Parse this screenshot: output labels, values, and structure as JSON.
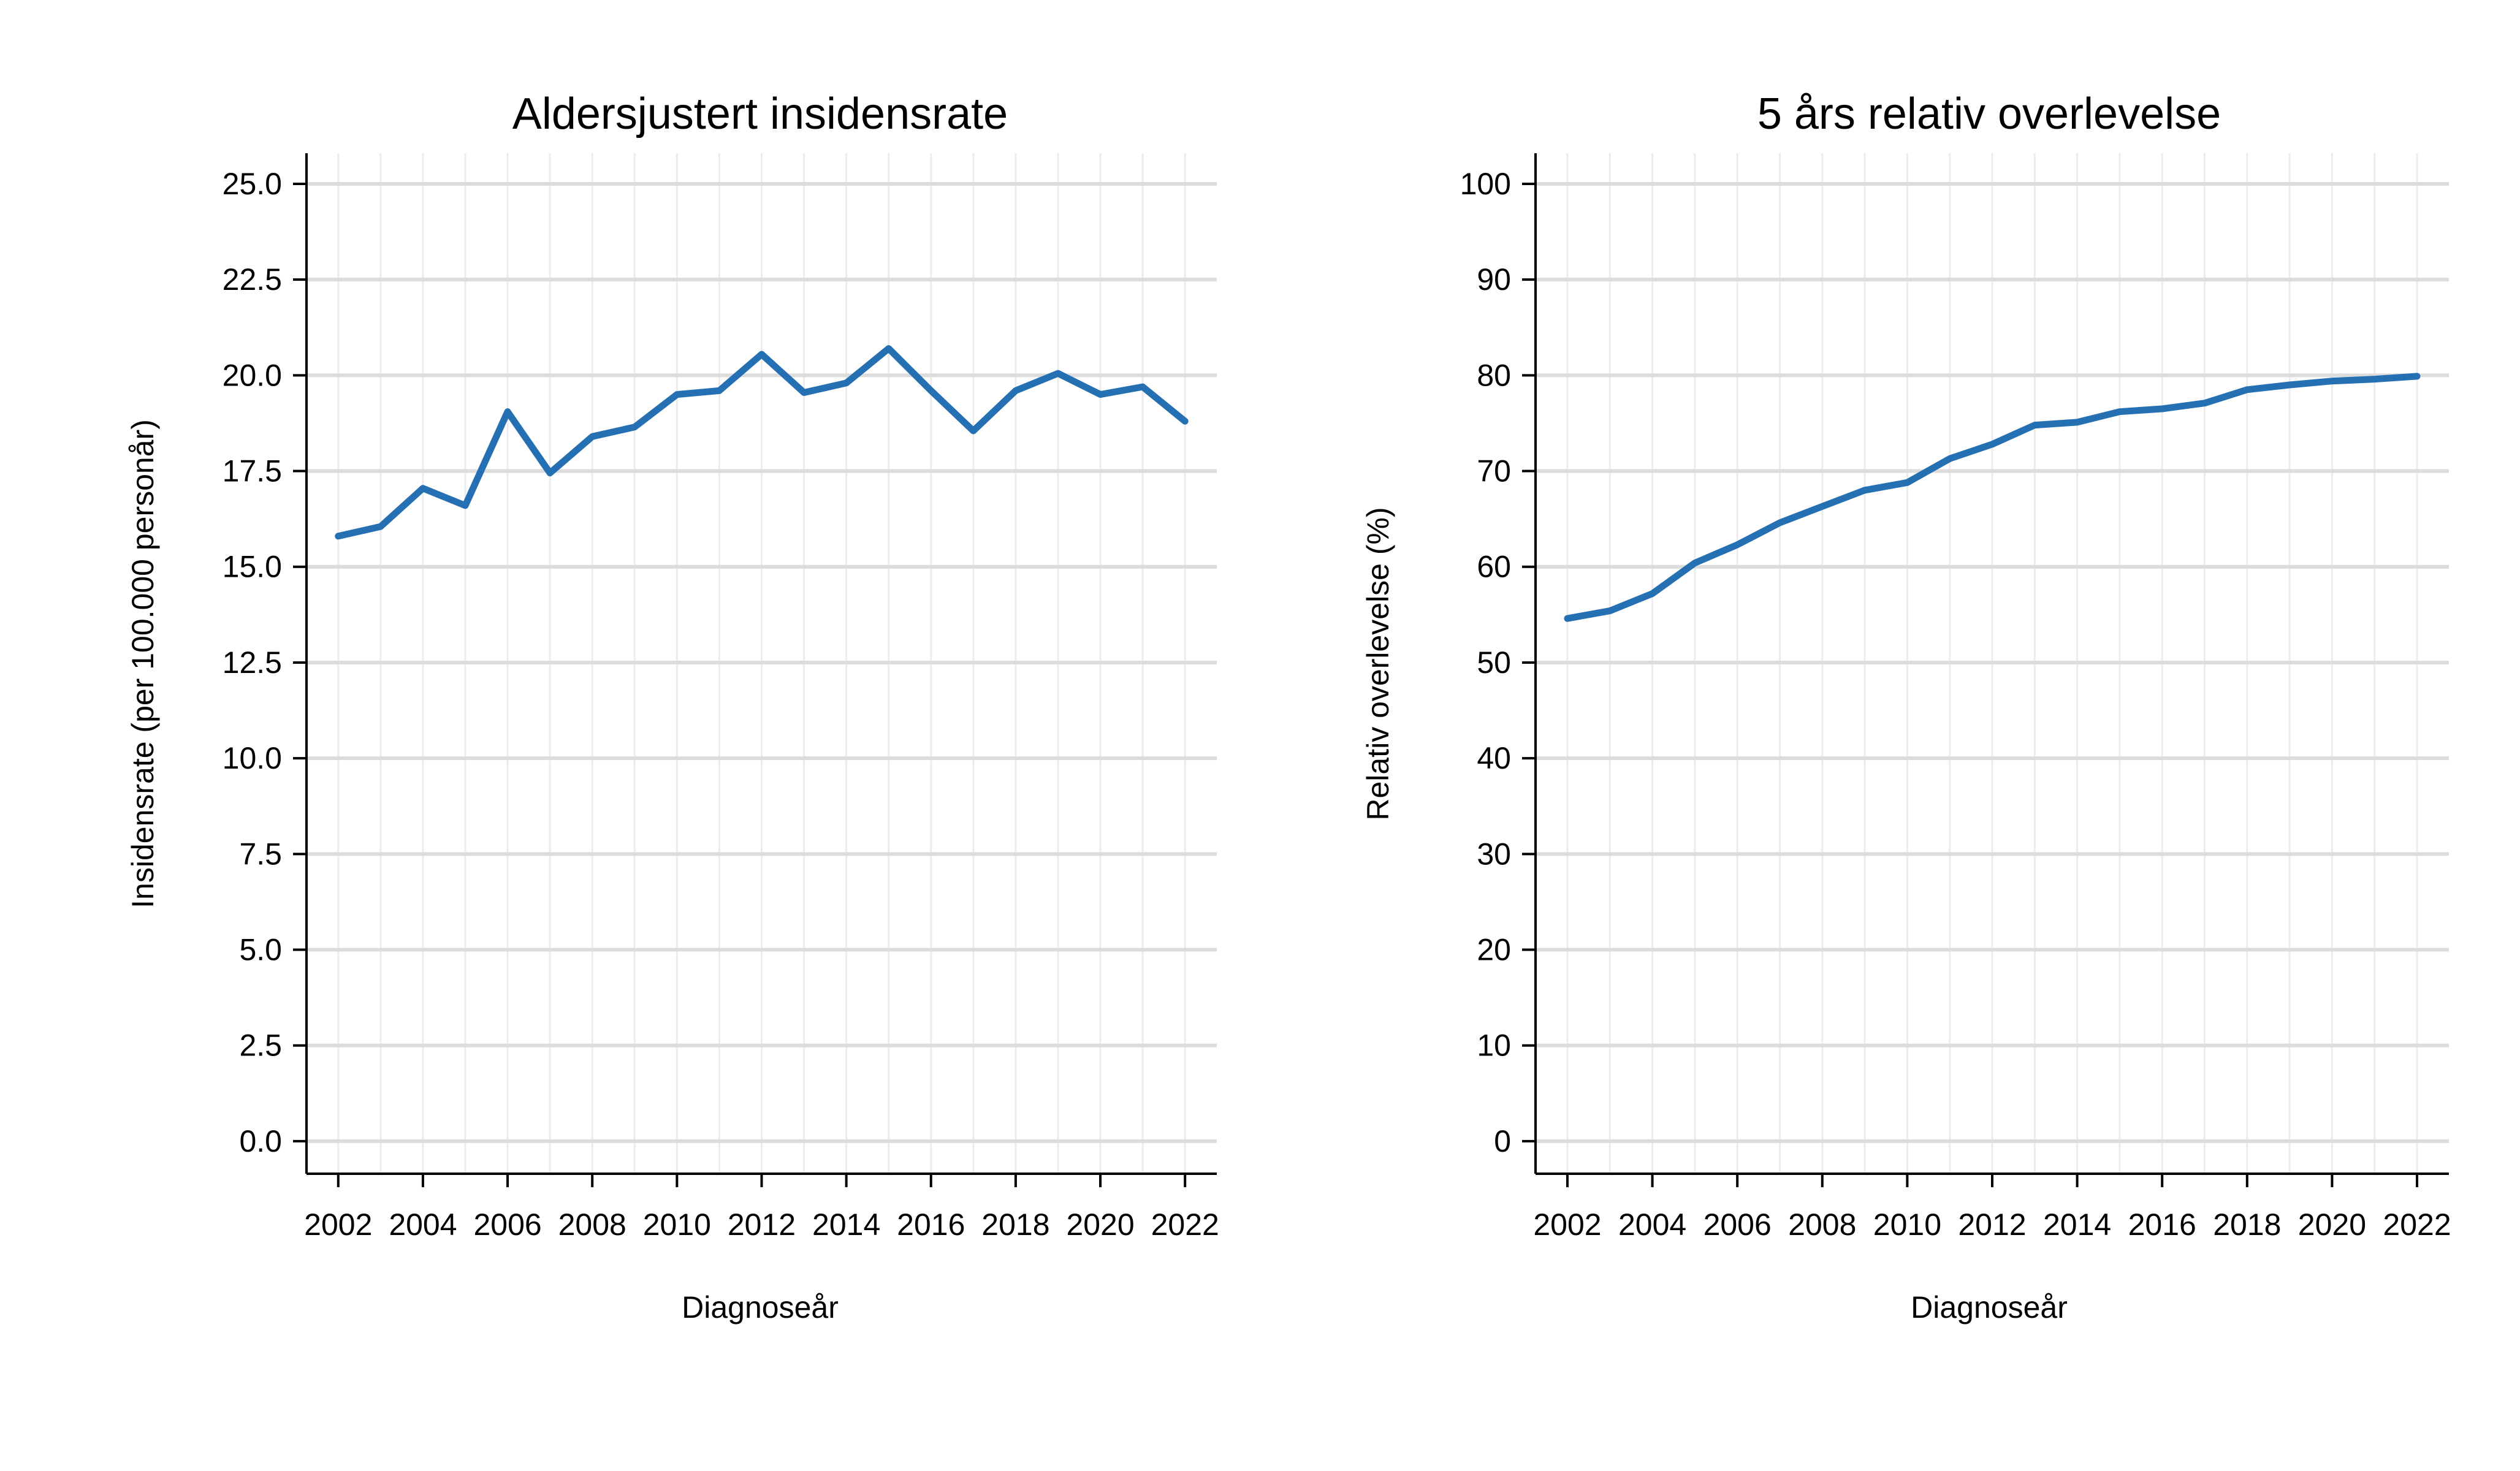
{
  "colors": {
    "series": "#2470b3"
  },
  "chart_data": [
    {
      "type": "line",
      "title": "Aldersjustert insidensrate",
      "xlabel": "Diagnoseår",
      "ylabel": "Insidensrate (per 100.000 personår)",
      "x": [
        2002,
        2003,
        2004,
        2005,
        2006,
        2007,
        2008,
        2009,
        2010,
        2011,
        2012,
        2013,
        2014,
        2015,
        2016,
        2017,
        2018,
        2019,
        2020,
        2021,
        2022
      ],
      "series": [
        {
          "values": [
            15.8,
            16.05,
            17.05,
            16.6,
            19.05,
            17.45,
            18.4,
            18.65,
            19.5,
            19.6,
            20.55,
            19.55,
            19.8,
            20.7,
            19.6,
            18.55,
            19.6,
            20.05,
            19.5,
            19.7,
            18.8
          ]
        }
      ],
      "xticks": [
        "2002",
        "2004",
        "2006",
        "2008",
        "2010",
        "2012",
        "2014",
        "2016",
        "2018",
        "2020",
        "2022"
      ],
      "yticks": [
        "0.0",
        "2.5",
        "5.0",
        "7.5",
        "10.0",
        "12.5",
        "15.0",
        "17.5",
        "20.0",
        "22.5",
        "25.0"
      ],
      "xlim": [
        2001.25,
        2022.75
      ],
      "ylim": [
        -0.85,
        25.8
      ],
      "grid": true
    },
    {
      "type": "line",
      "title": "5 års relativ overlevelse",
      "xlabel": "Diagnoseår",
      "ylabel": "Relativ overlevelse (%)",
      "x": [
        2002,
        2003,
        2004,
        2005,
        2006,
        2007,
        2008,
        2009,
        2010,
        2011,
        2012,
        2013,
        2014,
        2015,
        2016,
        2017,
        2018,
        2019,
        2020,
        2021,
        2022
      ],
      "series": [
        {
          "values": [
            54.6,
            55.4,
            57.2,
            60.4,
            62.3,
            64.6,
            66.3,
            68.0,
            68.8,
            71.3,
            72.8,
            74.8,
            75.1,
            76.2,
            76.5,
            77.1,
            78.5,
            79.0,
            79.4,
            79.6,
            79.9
          ]
        }
      ],
      "xticks": [
        "2002",
        "2004",
        "2006",
        "2008",
        "2010",
        "2012",
        "2014",
        "2016",
        "2018",
        "2020",
        "2022"
      ],
      "yticks": [
        "0",
        "10",
        "20",
        "30",
        "40",
        "50",
        "60",
        "70",
        "80",
        "90",
        "100"
      ],
      "xlim": [
        2001.25,
        2022.75
      ],
      "ylim": [
        -3.4,
        103.2
      ],
      "grid": true
    }
  ]
}
